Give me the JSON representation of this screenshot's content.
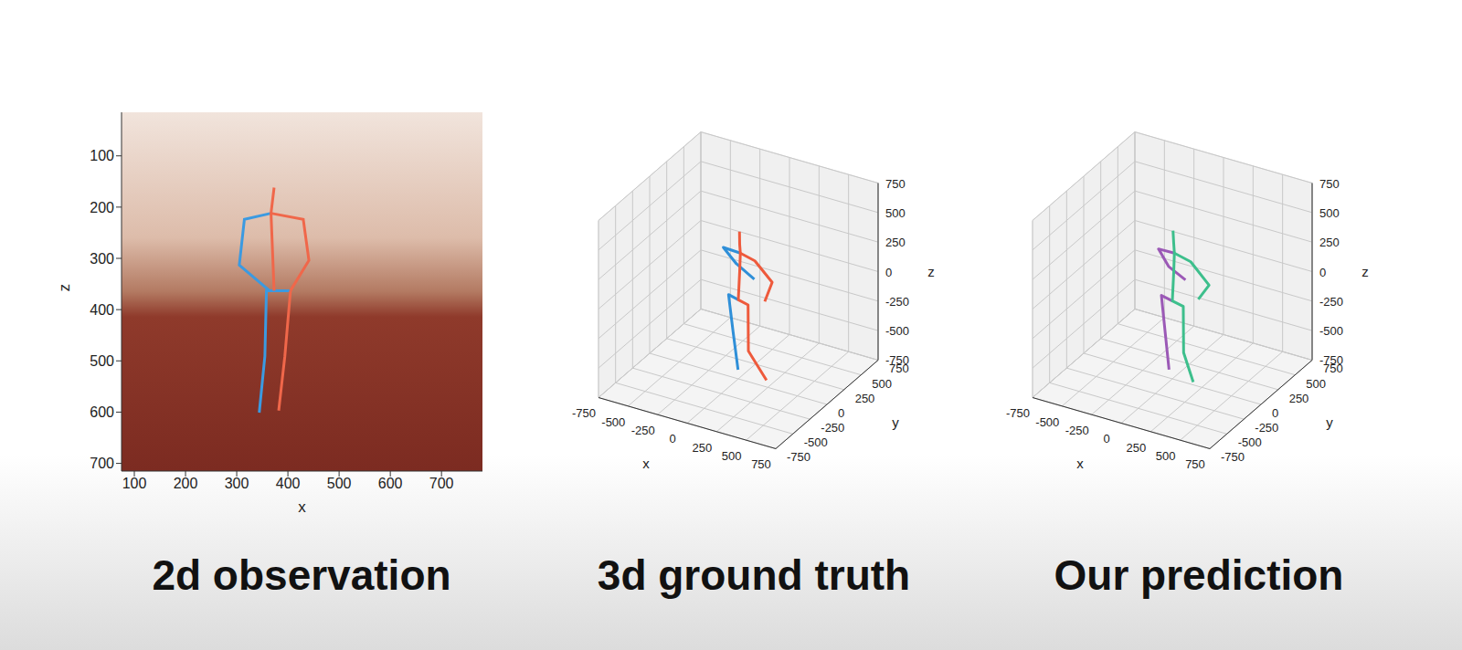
{
  "chart_data": [
    {
      "type": "line",
      "title": "2d observation",
      "xlabel": "x",
      "ylabel": "z",
      "xlim": [
        75,
        780
      ],
      "ylim": [
        15,
        715
      ],
      "xticks": [
        100,
        200,
        300,
        400,
        500,
        600,
        700
      ],
      "yticks": [
        100,
        200,
        300,
        400,
        500,
        600,
        700
      ],
      "series": [
        {
          "color": "#3b9ae1",
          "x": [
            367,
            315,
            305,
            364
          ],
          "values": [
            212,
            224,
            313,
            363
          ]
        },
        {
          "color": "#3b9ae1",
          "x": [
            405,
            358,
            355,
            344
          ],
          "values": [
            363,
            363,
            491,
            601
          ]
        },
        {
          "color": "#f0674a",
          "x": [
            373,
            367,
            373
          ],
          "values": [
            162,
            212,
            363
          ]
        },
        {
          "color": "#f0674a",
          "x": [
            367,
            430,
            441,
            405
          ],
          "values": [
            212,
            224,
            304,
            363
          ]
        },
        {
          "color": "#f0674a",
          "x": [
            405,
            394,
            382
          ],
          "values": [
            363,
            491,
            597
          ]
        }
      ]
    },
    {
      "type": "line3d",
      "title": "3d ground truth",
      "xlabel": "x",
      "ylabel": "y",
      "zlabel": "z",
      "xlim": [
        -750,
        750
      ],
      "ylim": [
        -750,
        750
      ],
      "zlim": [
        -750,
        750
      ],
      "xticks": [
        -750,
        -500,
        -250,
        0,
        250,
        500,
        750
      ],
      "yticks": [
        -750,
        -500,
        -250,
        0,
        250,
        500,
        750
      ],
      "zticks": [
        -750,
        -500,
        -250,
        0,
        250,
        500,
        750
      ],
      "grid": true,
      "series": [
        {
          "color": "#2f8fd8",
          "x": [
            -60,
            -90,
            -100,
            0
          ],
          "y": [
            100,
            80,
            30,
            0
          ],
          "z": [
            -740,
            -420,
            -80,
            -80
          ]
        },
        {
          "color": "#2f8fd8",
          "x": [
            20,
            -120,
            -150,
            0
          ],
          "y": [
            200,
            180,
            40,
            30
          ],
          "z": [
            0,
            100,
            300,
            300
          ]
        },
        {
          "color": "#ee5a3c",
          "x": [
            250,
            120,
            100,
            0,
            0,
            0,
            0,
            10
          ],
          "y": [
            -20,
            -60,
            -30,
            0,
            20,
            30,
            20,
            0
          ],
          "z": [
            -680,
            -450,
            -80,
            -80,
            150,
            300,
            380,
            500
          ]
        },
        {
          "color": "#ee5a3c",
          "x": [
            0,
            140,
            200,
            120
          ],
          "y": [
            30,
            0,
            150,
            180
          ],
          "z": [
            300,
            290,
            50,
            -150
          ]
        }
      ]
    },
    {
      "type": "line3d",
      "title": "Our prediction",
      "xlabel": "x",
      "ylabel": "y",
      "zlabel": "z",
      "xlim": [
        -750,
        750
      ],
      "ylim": [
        -750,
        750
      ],
      "zlim": [
        -750,
        750
      ],
      "xticks": [
        -750,
        -500,
        -250,
        0,
        250,
        500,
        750
      ],
      "yticks": [
        -750,
        -500,
        -250,
        0,
        250,
        500,
        750
      ],
      "zticks": [
        -750,
        -500,
        -250,
        0,
        250,
        500,
        750
      ],
      "grid": true,
      "series": [
        {
          "color": "#9b59b6",
          "x": [
            -80,
            -100,
            -110,
            0
          ],
          "y": [
            90,
            70,
            30,
            0
          ],
          "z": [
            -740,
            -430,
            -90,
            -90
          ]
        },
        {
          "color": "#9b59b6",
          "x": [
            -10,
            -130,
            -140,
            0
          ],
          "y": [
            210,
            170,
            40,
            30
          ],
          "z": [
            -20,
            80,
            290,
            300
          ]
        },
        {
          "color": "#3dbf8c",
          "x": [
            200,
            130,
            110,
            0,
            0,
            0,
            0,
            0
          ],
          "y": [
            -40,
            -60,
            -30,
            0,
            20,
            30,
            20,
            10
          ],
          "z": [
            -700,
            -460,
            -90,
            -90,
            140,
            300,
            390,
            500
          ]
        },
        {
          "color": "#3dbf8c",
          "x": [
            0,
            150,
            230,
            110
          ],
          "y": [
            30,
            10,
            140,
            190
          ],
          "z": [
            300,
            280,
            40,
            -140
          ]
        }
      ]
    }
  ]
}
